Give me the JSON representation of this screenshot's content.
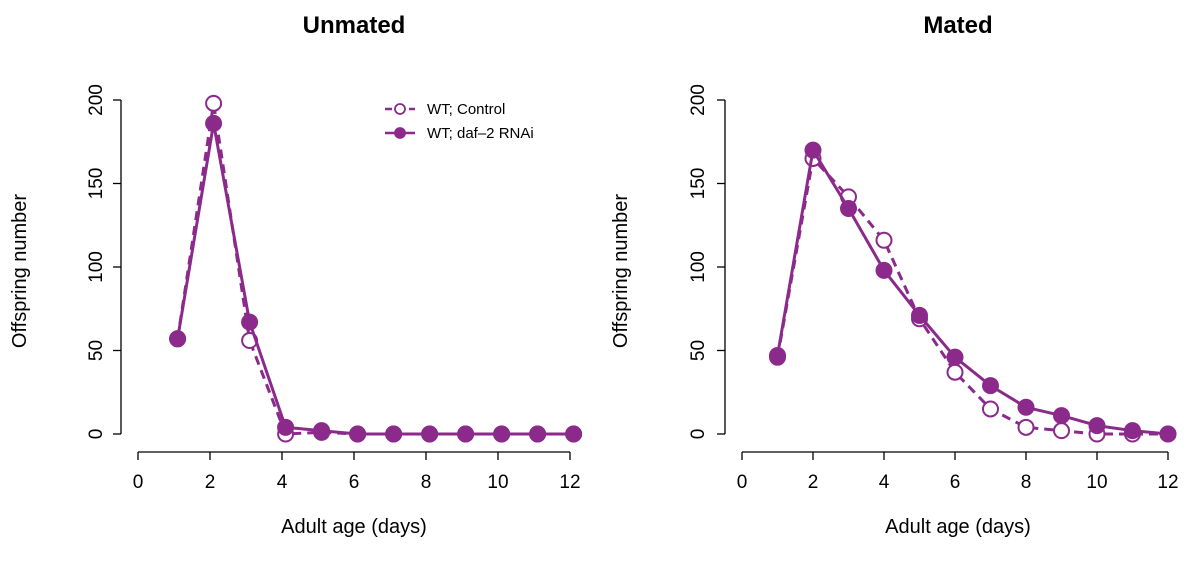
{
  "colors": {
    "series": "#8b2a8b",
    "axis": "#000000",
    "background": "#ffffff"
  },
  "legend": {
    "placement": "top-right of left panel",
    "entries": [
      {
        "label": "WT; Control",
        "style": "dashed-open-circle"
      },
      {
        "label": "WT; daf–2 RNAi",
        "style": "solid-filled-circle"
      }
    ]
  },
  "chart_data": [
    {
      "type": "line",
      "title": "Unmated",
      "xlabel": "Adult age (days)",
      "ylabel": "Offspring number",
      "xlim": [
        0,
        12
      ],
      "ylim": [
        0,
        200
      ],
      "x_ticks": [
        "0",
        "2",
        "4",
        "6",
        "8",
        "10",
        "12"
      ],
      "y_ticks": [
        "0",
        "50",
        "100",
        "150",
        "200"
      ],
      "grid": false,
      "legend": true,
      "series": [
        {
          "name": "WT; Control",
          "line": "dashed",
          "marker": "open-circle",
          "x": [
            1.1,
            2.1,
            3.1,
            4.1,
            5.1,
            6.1,
            7.1,
            8.1,
            9.1,
            10.1,
            11.1,
            12.1
          ],
          "y": [
            57,
            198,
            56,
            0,
            1,
            0,
            0,
            0,
            0,
            0,
            0,
            0
          ]
        },
        {
          "name": "WT; daf–2 RNAi",
          "line": "solid",
          "marker": "filled-circle",
          "x": [
            1.1,
            2.1,
            3.1,
            4.1,
            5.1,
            6.1,
            7.1,
            8.1,
            9.1,
            10.1,
            11.1,
            12.1
          ],
          "y": [
            57,
            186,
            67,
            4,
            2,
            0,
            0,
            0,
            0,
            0,
            0,
            0
          ]
        }
      ]
    },
    {
      "type": "line",
      "title": "Mated",
      "xlabel": "Adult age (days)",
      "ylabel": "Offspring number",
      "xlim": [
        0,
        12
      ],
      "ylim": [
        0,
        200
      ],
      "x_ticks": [
        "0",
        "2",
        "4",
        "6",
        "8",
        "10",
        "12"
      ],
      "y_ticks": [
        "0",
        "50",
        "100",
        "150",
        "200"
      ],
      "grid": false,
      "legend": false,
      "series": [
        {
          "name": "WT; Control",
          "line": "dashed",
          "marker": "open-circle",
          "x": [
            1,
            2,
            3,
            4,
            5,
            6,
            7,
            8,
            9,
            10,
            11,
            12
          ],
          "y": [
            46,
            165,
            142,
            116,
            69,
            37,
            15,
            4,
            2,
            0,
            0,
            0
          ]
        },
        {
          "name": "WT; daf–2 RNAi",
          "line": "solid",
          "marker": "filled-circle",
          "x": [
            1,
            2,
            3,
            4,
            5,
            6,
            7,
            8,
            9,
            10,
            11,
            12
          ],
          "y": [
            47,
            170,
            135,
            98,
            71,
            46,
            29,
            16,
            11,
            5,
            2,
            0
          ]
        }
      ]
    }
  ]
}
